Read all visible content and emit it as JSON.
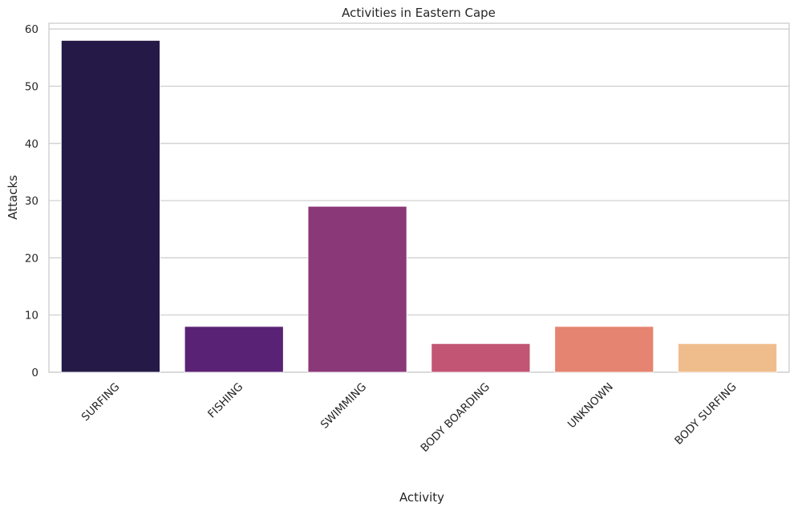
{
  "chart_data": {
    "type": "bar",
    "title": "Activities in Eastern Cape",
    "xlabel": "Activity",
    "ylabel": "Attacks",
    "categories": [
      "SURFING",
      "FISHING",
      "SWIMMING",
      "BODY BOARDING",
      "UNKNOWN",
      "BODY SURFING"
    ],
    "values": [
      58,
      8,
      29,
      5,
      8,
      5
    ],
    "colors": [
      "#251a47",
      "#5a2274",
      "#8a3878",
      "#c15573",
      "#e58470",
      "#efbd8c"
    ],
    "ylim": [
      0,
      61
    ],
    "yticks": [
      0,
      10,
      20,
      30,
      40,
      50,
      60
    ],
    "grid": "horizontal",
    "legend": "none"
  }
}
